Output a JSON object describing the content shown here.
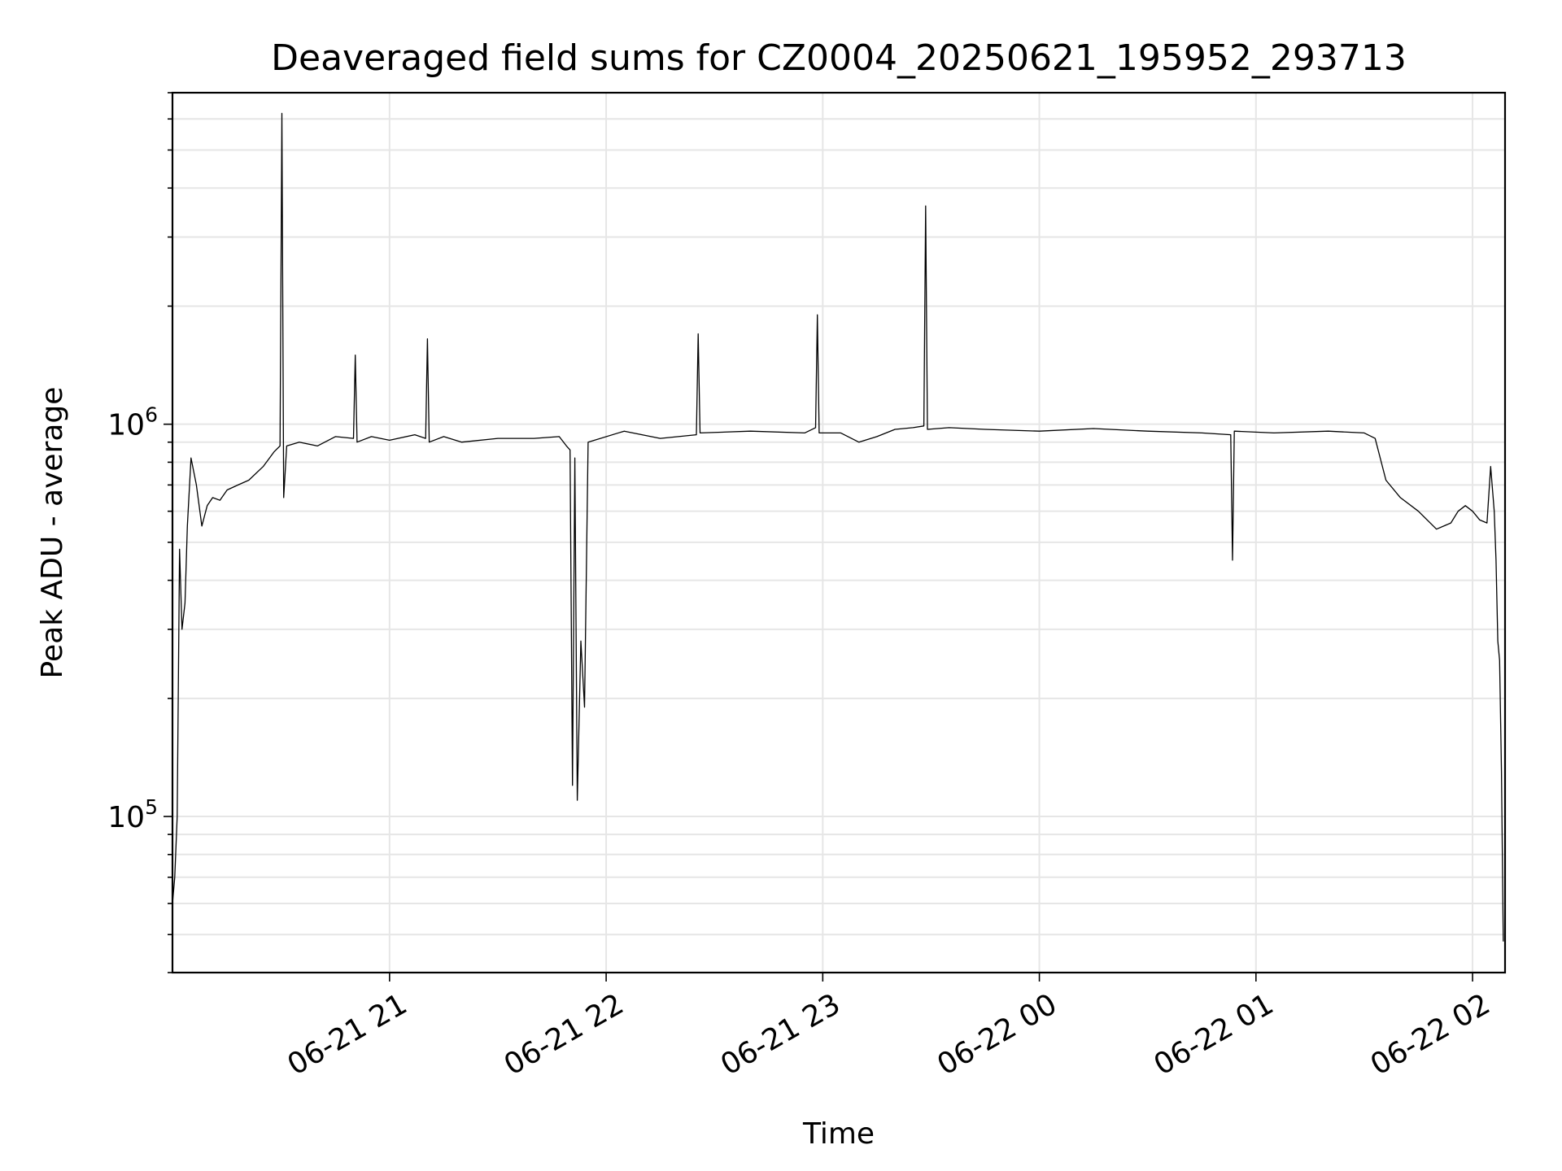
{
  "chart_data": {
    "type": "line",
    "title": "Deaveraged field sums for CZ0004_20250621_195952_293713",
    "xlabel": "Time",
    "ylabel": "Peak ADU - average",
    "yscale": "log",
    "xlim": [
      "2025-06-21 19:59:52",
      "2025-06-22 02:09:00"
    ],
    "ylim": [
      40000,
      7000000
    ],
    "x_ticks": [
      {
        "value": "2025-06-21 21:00",
        "label": "06-21 21"
      },
      {
        "value": "2025-06-21 22:00",
        "label": "06-21 22"
      },
      {
        "value": "2025-06-21 23:00",
        "label": "06-21 23"
      },
      {
        "value": "2025-06-22 00:00",
        "label": "06-22 00"
      },
      {
        "value": "2025-06-22 01:00",
        "label": "06-22 01"
      },
      {
        "value": "2025-06-22 02:00",
        "label": "06-22 02"
      }
    ],
    "y_ticks": [
      {
        "value": 100000,
        "base": "10",
        "exp": "5"
      },
      {
        "value": 1000000,
        "base": "10",
        "exp": "6"
      }
    ],
    "grid": true,
    "legend": "none",
    "line_color": "#000000",
    "series": [
      {
        "x": [
          "2025-06-21 19:59:52",
          "2025-06-21 20:00:30",
          "2025-06-21 20:01:10",
          "2025-06-21 20:01:50",
          "2025-06-21 20:02:30",
          "2025-06-21 20:03:20",
          "2025-06-21 20:04:00",
          "2025-06-21 20:05:00",
          "2025-06-21 20:06:30",
          "2025-06-21 20:08:00",
          "2025-06-21 20:09:30",
          "2025-06-21 20:11:00",
          "2025-06-21 20:13:00",
          "2025-06-21 20:15:00",
          "2025-06-21 20:18:00",
          "2025-06-21 20:21:00",
          "2025-06-21 20:25:00",
          "2025-06-21 20:28:00",
          "2025-06-21 20:29:40",
          "2025-06-21 20:30:10",
          "2025-06-21 20:30:40",
          "2025-06-21 20:31:30",
          "2025-06-21 20:35:00",
          "2025-06-21 20:40:00",
          "2025-06-21 20:45:00",
          "2025-06-21 20:50:00",
          "2025-06-21 20:50:30",
          "2025-06-21 20:51:00",
          "2025-06-21 20:55:00",
          "2025-06-21 21:00:00",
          "2025-06-21 21:07:00",
          "2025-06-21 21:10:00",
          "2025-06-21 21:10:30",
          "2025-06-21 21:11:00",
          "2025-06-21 21:15:00",
          "2025-06-21 21:20:00",
          "2025-06-21 21:30:00",
          "2025-06-21 21:40:00",
          "2025-06-21 21:47:00",
          "2025-06-21 21:49:00",
          "2025-06-21 21:50:00",
          "2025-06-21 21:50:40",
          "2025-06-21 21:51:20",
          "2025-06-21 21:52:00",
          "2025-06-21 21:53:00",
          "2025-06-21 21:54:00",
          "2025-06-21 21:55:00",
          "2025-06-21 22:05:00",
          "2025-06-21 22:15:00",
          "2025-06-21 22:25:00",
          "2025-06-21 22:25:30",
          "2025-06-21 22:26:00",
          "2025-06-21 22:40:00",
          "2025-06-21 22:55:00",
          "2025-06-21 22:58:00",
          "2025-06-21 22:58:30",
          "2025-06-21 22:59:00",
          "2025-06-21 23:05:00",
          "2025-06-21 23:10:00",
          "2025-06-21 23:15:00",
          "2025-06-21 23:20:00",
          "2025-06-21 23:25:00",
          "2025-06-21 23:28:00",
          "2025-06-21 23:28:30",
          "2025-06-21 23:29:00",
          "2025-06-21 23:35:00",
          "2025-06-21 23:45:00",
          "2025-06-22 00:00:00",
          "2025-06-22 00:15:00",
          "2025-06-22 00:30:00",
          "2025-06-22 00:45:00",
          "2025-06-22 00:53:00",
          "2025-06-22 00:53:30",
          "2025-06-22 00:54:00",
          "2025-06-22 01:05:00",
          "2025-06-22 01:20:00",
          "2025-06-22 01:30:00",
          "2025-06-22 01:33:00",
          "2025-06-22 01:36:00",
          "2025-06-22 01:40:00",
          "2025-06-22 01:45:00",
          "2025-06-22 01:50:00",
          "2025-06-22 01:54:00",
          "2025-06-22 01:56:00",
          "2025-06-22 01:58:00",
          "2025-06-22 02:00:00",
          "2025-06-22 02:02:00",
          "2025-06-22 02:04:00",
          "2025-06-22 02:05:00",
          "2025-06-22 02:06:00",
          "2025-06-22 02:06:30",
          "2025-06-22 02:07:00",
          "2025-06-22 02:07:30",
          "2025-06-22 02:08:00",
          "2025-06-22 02:08:30"
        ],
        "y": [
          60000,
          70000,
          100000,
          480000,
          300000,
          350000,
          550000,
          820000,
          700000,
          550000,
          620000,
          650000,
          640000,
          680000,
          700000,
          720000,
          780000,
          850000,
          880000,
          6200000,
          650000,
          880000,
          900000,
          880000,
          930000,
          920000,
          1500000,
          900000,
          930000,
          910000,
          940000,
          920000,
          1650000,
          900000,
          930000,
          900000,
          920000,
          920000,
          930000,
          880000,
          860000,
          120000,
          820000,
          110000,
          280000,
          190000,
          900000,
          960000,
          920000,
          940000,
          1700000,
          950000,
          960000,
          950000,
          980000,
          1900000,
          950000,
          950000,
          900000,
          930000,
          970000,
          980000,
          990000,
          3600000,
          970000,
          980000,
          970000,
          960000,
          975000,
          960000,
          950000,
          940000,
          450000,
          960000,
          950000,
          960000,
          950000,
          920000,
          720000,
          650000,
          600000,
          540000,
          560000,
          600000,
          620000,
          600000,
          570000,
          560000,
          780000,
          600000,
          450000,
          280000,
          250000,
          130000,
          48000
        ]
      }
    ]
  }
}
